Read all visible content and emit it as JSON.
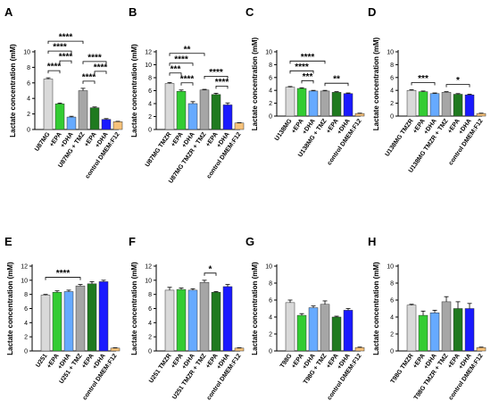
{
  "colors": {
    "base": "#d9d9d9",
    "epa": "#33cc33",
    "dha": "#66aaff",
    "combo": "#a6a6a6",
    "combo_epa": "#1f7a1f",
    "combo_dha": "#1a1aff",
    "control": "#f7c27a"
  },
  "chart_data": [
    {
      "type": "bar",
      "panel": "A",
      "ylabel": "Lactate concentration (mM)",
      "ylim": [
        0,
        10
      ],
      "yticks": [
        0,
        2,
        4,
        6,
        8,
        10
      ],
      "categories": [
        "U87MG",
        "+EPA",
        "+DHA",
        "U87MG + TMZ",
        "+EPA",
        "+DHA",
        "control DMEM:F12"
      ],
      "values": [
        6.5,
        3.3,
        1.6,
        5.0,
        2.8,
        1.3,
        1.0
      ],
      "errors": [
        0.15,
        0.1,
        0.1,
        0.3,
        0.1,
        0.1,
        0.05
      ],
      "colors": [
        "base",
        "epa",
        "dha",
        "combo",
        "combo_epa",
        "combo_dha",
        "control"
      ],
      "significance": [
        {
          "from": 0,
          "to": 3,
          "label": "****"
        },
        {
          "from": 0,
          "to": 2,
          "label": "****"
        },
        {
          "from": 0,
          "to": 1,
          "label": "****"
        },
        {
          "from": 1,
          "to": 2,
          "label": "****"
        },
        {
          "from": 3,
          "to": 5,
          "label": "****"
        },
        {
          "from": 3,
          "to": 4,
          "label": "****"
        },
        {
          "from": 4,
          "to": 5,
          "label": "****"
        }
      ]
    },
    {
      "type": "bar",
      "panel": "B",
      "ylabel": "Lactate concentration (mM)",
      "ylim": [
        0,
        12
      ],
      "yticks": [
        0,
        2,
        4,
        6,
        8,
        10,
        12
      ],
      "categories": [
        "U87MG TMZR",
        "+EPA",
        "+DHA",
        "U87MG TMZR + TMZ",
        "+EPA",
        "+DHA",
        "control DMEM:F12"
      ],
      "values": [
        7.1,
        5.9,
        4.0,
        6.1,
        5.4,
        3.8,
        1.0
      ],
      "errors": [
        0.15,
        0.2,
        0.3,
        0.1,
        0.2,
        0.3,
        0.05
      ],
      "colors": [
        "base",
        "epa",
        "dha",
        "combo",
        "combo_epa",
        "combo_dha",
        "control"
      ],
      "significance": [
        {
          "from": 0,
          "to": 3,
          "label": "**"
        },
        {
          "from": 0,
          "to": 2,
          "label": "****"
        },
        {
          "from": 1,
          "to": 2,
          "label": "****"
        },
        {
          "from": 0,
          "to": 1,
          "label": "***"
        },
        {
          "from": 3,
          "to": 5,
          "label": "****"
        },
        {
          "from": 4,
          "to": 5,
          "label": "****"
        }
      ]
    },
    {
      "type": "bar",
      "panel": "C",
      "ylabel": "Lactate concentration (mM)",
      "ylim": [
        0,
        10
      ],
      "yticks": [
        0,
        2,
        4,
        6,
        8,
        10
      ],
      "categories": [
        "U138MG",
        "+EPA",
        "+DHA",
        "U138MG + TMZ",
        "+EPA",
        "+DHA",
        "control DMEM:F12"
      ],
      "values": [
        4.5,
        4.3,
        3.9,
        3.9,
        3.7,
        3.5,
        0.4
      ],
      "errors": [
        0.1,
        0.1,
        0.1,
        0.1,
        0.1,
        0.1,
        0.05
      ],
      "colors": [
        "base",
        "epa",
        "dha",
        "combo",
        "combo_epa",
        "combo_dha",
        "control"
      ],
      "significance": [
        {
          "from": 0,
          "to": 3,
          "label": "****"
        },
        {
          "from": 0,
          "to": 2,
          "label": "****"
        },
        {
          "from": 1,
          "to": 2,
          "label": "***"
        },
        {
          "from": 3,
          "to": 5,
          "label": "**"
        }
      ]
    },
    {
      "type": "bar",
      "panel": "D",
      "ylabel": "Lactate concentration (mM)",
      "ylim": [
        0,
        10
      ],
      "yticks": [
        0,
        2,
        4,
        6,
        8,
        10
      ],
      "categories": [
        "U138MG TMZR",
        "+EPA",
        "+DHA",
        "U138MG TMZR + TMZ",
        "+EPA",
        "+DHA",
        "control DMEM:F12"
      ],
      "values": [
        4.0,
        3.8,
        3.5,
        3.7,
        3.4,
        3.3,
        0.4
      ],
      "errors": [
        0.1,
        0.1,
        0.1,
        0.1,
        0.1,
        0.1,
        0.05
      ],
      "colors": [
        "base",
        "epa",
        "dha",
        "combo",
        "combo_epa",
        "combo_dha",
        "control"
      ],
      "significance": [
        {
          "from": 0,
          "to": 2,
          "label": "***"
        },
        {
          "from": 3,
          "to": 5,
          "label": "*"
        }
      ]
    },
    {
      "type": "bar",
      "panel": "E",
      "ylabel": "Lactate concentration (mM)",
      "ylim": [
        0,
        12
      ],
      "yticks": [
        0,
        2,
        4,
        6,
        8,
        10,
        12
      ],
      "categories": [
        "U251",
        "+EPA",
        "+DHA",
        "U251 + TMZ",
        "+EPA",
        "+DHA",
        "control DMEM:F12"
      ],
      "values": [
        7.9,
        8.3,
        8.4,
        9.2,
        9.5,
        9.8,
        0.4
      ],
      "errors": [
        0.1,
        0.2,
        0.2,
        0.2,
        0.3,
        0.2,
        0.05
      ],
      "colors": [
        "base",
        "epa",
        "dha",
        "combo",
        "combo_epa",
        "combo_dha",
        "control"
      ],
      "significance": [
        {
          "from": 0,
          "to": 3,
          "label": "****"
        }
      ]
    },
    {
      "type": "bar",
      "panel": "F",
      "ylabel": "Lactate concentration (mM)",
      "ylim": [
        0,
        12
      ],
      "yticks": [
        0,
        2,
        4,
        6,
        8,
        10,
        12
      ],
      "categories": [
        "U251 TMZR",
        "+EPA",
        "+DHA",
        "U251 TMZR + TMZ",
        "+EPA",
        "+DHA",
        "control DMEM:F12"
      ],
      "values": [
        8.6,
        8.7,
        8.6,
        9.7,
        8.3,
        9.1,
        0.4
      ],
      "errors": [
        0.4,
        0.2,
        0.2,
        0.3,
        0.1,
        0.3,
        0.05
      ],
      "colors": [
        "base",
        "epa",
        "dha",
        "combo",
        "combo_epa",
        "combo_dha",
        "control"
      ],
      "significance": [
        {
          "from": 3,
          "to": 4,
          "label": "*"
        }
      ]
    },
    {
      "type": "bar",
      "panel": "G",
      "ylabel": "Lactate concentration (mM)",
      "ylim": [
        0,
        10
      ],
      "yticks": [
        0,
        2,
        4,
        6,
        8,
        10
      ],
      "categories": [
        "T98G",
        "+EPA",
        "+DHA",
        "T98G + TMZ",
        "+EPA",
        "+DHA",
        "control DMEM:F12"
      ],
      "values": [
        5.7,
        4.2,
        5.1,
        5.5,
        4.0,
        4.8,
        0.4
      ],
      "errors": [
        0.3,
        0.2,
        0.2,
        0.4,
        0.1,
        0.2,
        0.05
      ],
      "colors": [
        "base",
        "epa",
        "dha",
        "combo",
        "combo_epa",
        "combo_dha",
        "control"
      ],
      "significance": []
    },
    {
      "type": "bar",
      "panel": "H",
      "ylabel": "Lactate concentration (mM)",
      "ylim": [
        0,
        10
      ],
      "yticks": [
        0,
        2,
        4,
        6,
        8,
        10
      ],
      "categories": [
        "T98G TMZR",
        "+EPA",
        "+DHA",
        "T98G TMZR + TMZ",
        "+EPA",
        "+DHA",
        "control DMEM:F12"
      ],
      "values": [
        5.4,
        4.2,
        4.5,
        5.8,
        5.0,
        5.0,
        0.4
      ],
      "errors": [
        0.1,
        0.5,
        0.3,
        0.6,
        0.8,
        0.6,
        0.05
      ],
      "colors": [
        "base",
        "epa",
        "dha",
        "combo",
        "combo_epa",
        "combo_dha",
        "control"
      ],
      "significance": []
    }
  ]
}
